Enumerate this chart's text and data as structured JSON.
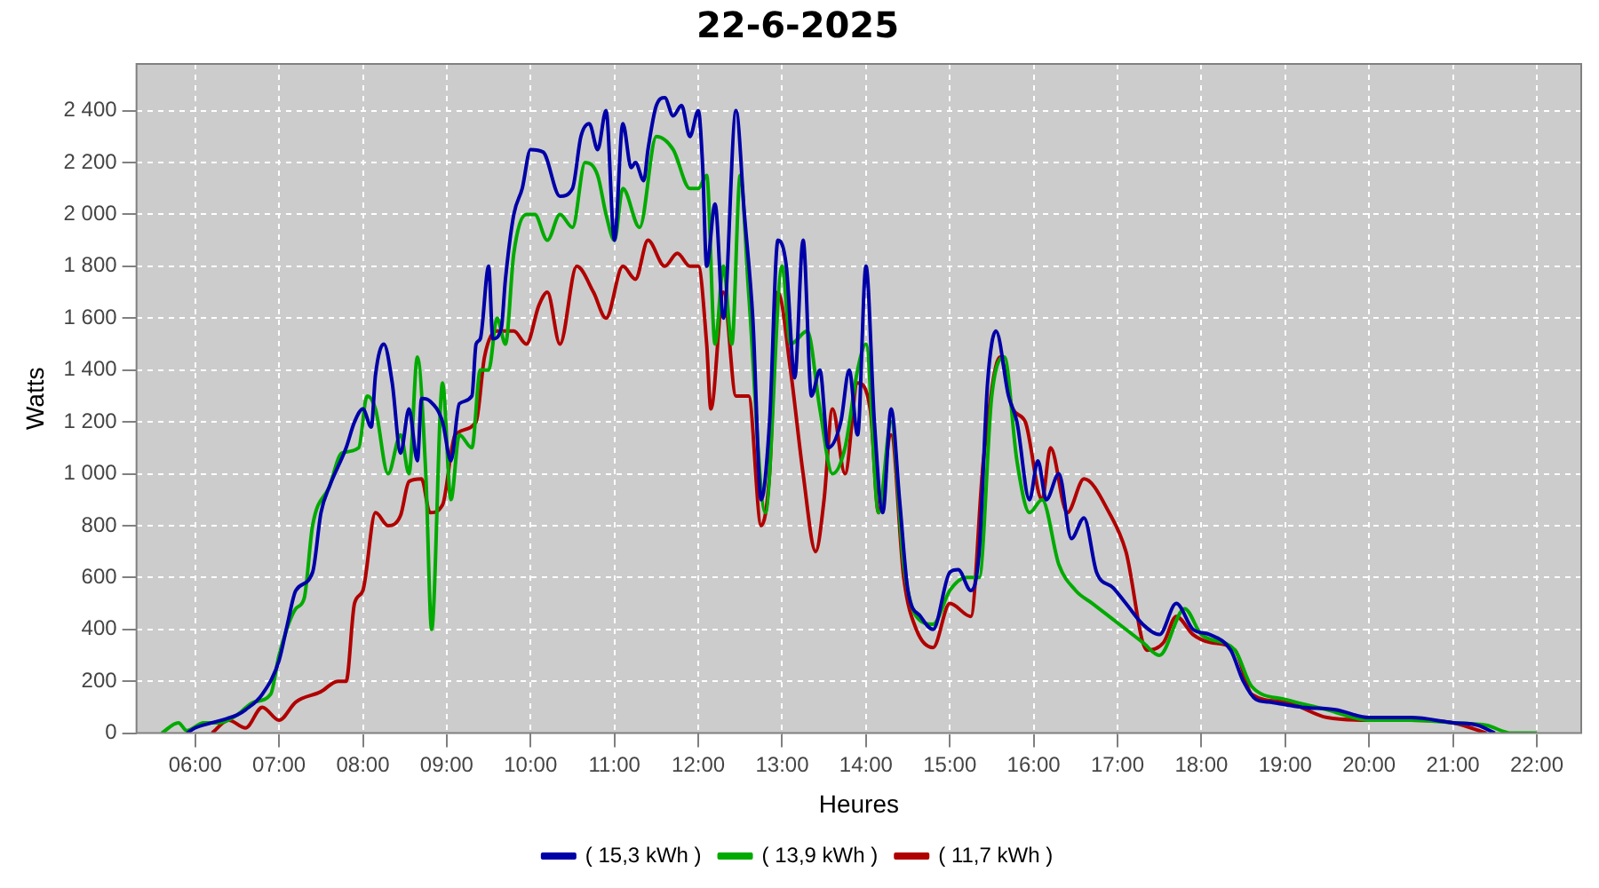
{
  "chart_data": {
    "type": "line",
    "title": "22-6-2025",
    "xlabel": "Heures",
    "ylabel": "Watts",
    "grid": true,
    "legend": "bottom",
    "marker": "none",
    "line_style": "solid",
    "xlim": [
      5.3,
      22.53
    ],
    "ylim": [
      0,
      2580
    ],
    "xticks": [
      {
        "value": 6,
        "label": "06:00"
      },
      {
        "value": 7,
        "label": "07:00"
      },
      {
        "value": 8,
        "label": "08:00"
      },
      {
        "value": 9,
        "label": "09:00"
      },
      {
        "value": 10,
        "label": "10:00"
      },
      {
        "value": 11,
        "label": "11:00"
      },
      {
        "value": 12,
        "label": "12:00"
      },
      {
        "value": 13,
        "label": "13:00"
      },
      {
        "value": 14,
        "label": "14:00"
      },
      {
        "value": 15,
        "label": "15:00"
      },
      {
        "value": 16,
        "label": "16:00"
      },
      {
        "value": 17,
        "label": "17:00"
      },
      {
        "value": 18,
        "label": "18:00"
      },
      {
        "value": 19,
        "label": "19:00"
      },
      {
        "value": 20,
        "label": "20:00"
      },
      {
        "value": 21,
        "label": "21:00"
      },
      {
        "value": 22,
        "label": "22:00"
      }
    ],
    "yticks": [
      0,
      200,
      400,
      600,
      800,
      {
        "value": 1000,
        "label": "1 000"
      },
      {
        "value": 1200,
        "label": "1 200"
      },
      {
        "value": 1400,
        "label": "1 400"
      },
      {
        "value": 1600,
        "label": "1 600"
      },
      {
        "value": 1800,
        "label": "1 800"
      },
      {
        "value": 2000,
        "label": "2 000"
      },
      {
        "value": 2200,
        "label": "2 200"
      },
      {
        "value": 2400,
        "label": "2 400"
      }
    ],
    "series": [
      {
        "name": "( 15,3 kWh )",
        "color": "#0000a8",
        "x": [
          5.9,
          6.0,
          6.2,
          6.5,
          6.6,
          6.8,
          7.0,
          7.1,
          7.2,
          7.4,
          7.5,
          7.6,
          7.8,
          7.9,
          8.0,
          8.1,
          8.15,
          8.25,
          8.35,
          8.45,
          8.55,
          8.65,
          8.7,
          8.8,
          8.95,
          9.05,
          9.15,
          9.3,
          9.35,
          9.4,
          9.5,
          9.55,
          9.65,
          9.7,
          9.8,
          9.9,
          10.0,
          10.15,
          10.35,
          10.5,
          10.6,
          10.7,
          10.8,
          10.9,
          11.0,
          11.1,
          11.2,
          11.25,
          11.35,
          11.4,
          11.5,
          11.6,
          11.7,
          11.8,
          11.9,
          12.0,
          12.05,
          12.1,
          12.2,
          12.3,
          12.45,
          12.55,
          12.65,
          12.75,
          12.85,
          12.95,
          13.05,
          13.15,
          13.25,
          13.35,
          13.45,
          13.55,
          13.7,
          13.8,
          13.9,
          14.0,
          14.1,
          14.2,
          14.3,
          14.4,
          14.5,
          14.65,
          14.8,
          15.0,
          15.1,
          15.25,
          15.35,
          15.45,
          15.55,
          15.7,
          15.8,
          15.95,
          16.05,
          16.15,
          16.3,
          16.45,
          16.6,
          16.75,
          16.95,
          17.1,
          17.3,
          17.5,
          17.7,
          17.9,
          18.1,
          18.35,
          18.5,
          18.65,
          18.8,
          19.0,
          19.2,
          19.6,
          20.0,
          20.5,
          21.0,
          21.3,
          21.5
        ],
        "values": [
          0,
          20,
          40,
          70,
          90,
          150,
          280,
          420,
          550,
          620,
          850,
          950,
          1100,
          1200,
          1250,
          1180,
          1380,
          1500,
          1350,
          1080,
          1250,
          1050,
          1290,
          1280,
          1200,
          1050,
          1270,
          1300,
          1500,
          1520,
          1800,
          1520,
          1560,
          1750,
          2000,
          2100,
          2250,
          2240,
          2070,
          2100,
          2300,
          2350,
          2250,
          2400,
          1900,
          2350,
          2180,
          2200,
          2130,
          2250,
          2420,
          2450,
          2380,
          2420,
          2300,
          2400,
          2200,
          1800,
          2040,
          1600,
          2400,
          2000,
          1600,
          900,
          1200,
          1900,
          1800,
          1370,
          1900,
          1300,
          1400,
          1100,
          1200,
          1400,
          1150,
          1800,
          1200,
          850,
          1250,
          900,
          550,
          450,
          400,
          620,
          630,
          550,
          700,
          1350,
          1550,
          1300,
          1200,
          900,
          1050,
          900,
          1000,
          750,
          830,
          620,
          560,
          500,
          420,
          380,
          500,
          400,
          380,
          320,
          200,
          130,
          120,
          110,
          100,
          90,
          60,
          60,
          40,
          30,
          0
        ]
      },
      {
        "name": "( 13,9 kWh )",
        "color": "#00aa00",
        "x": [
          5.6,
          5.8,
          5.9,
          6.1,
          6.3,
          6.5,
          6.7,
          6.9,
          7.0,
          7.2,
          7.3,
          7.4,
          7.6,
          7.75,
          7.95,
          8.05,
          8.15,
          8.3,
          8.45,
          8.55,
          8.65,
          8.75,
          8.82,
          8.95,
          9.05,
          9.15,
          9.3,
          9.4,
          9.5,
          9.6,
          9.7,
          9.8,
          9.95,
          10.05,
          10.2,
          10.35,
          10.5,
          10.65,
          10.8,
          10.9,
          11.0,
          11.1,
          11.3,
          11.5,
          11.7,
          11.9,
          12.0,
          12.1,
          12.2,
          12.3,
          12.4,
          12.5,
          12.6,
          12.8,
          13.0,
          13.1,
          13.3,
          13.45,
          13.6,
          13.75,
          13.9,
          14.0,
          14.15,
          14.3,
          14.45,
          14.6,
          14.8,
          15.0,
          15.2,
          15.35,
          15.5,
          15.65,
          15.8,
          15.95,
          16.1,
          16.3,
          16.5,
          16.7,
          16.9,
          17.1,
          17.3,
          17.5,
          17.8,
          18.0,
          18.4,
          18.6,
          19.0,
          19.5,
          20.0,
          20.5,
          21.0,
          21.4,
          21.7,
          22.0
        ],
        "values": [
          0,
          40,
          10,
          40,
          40,
          70,
          120,
          150,
          300,
          480,
          520,
          800,
          950,
          1080,
          1100,
          1300,
          1250,
          1000,
          1150,
          1000,
          1450,
          1000,
          400,
          1350,
          900,
          1150,
          1100,
          1400,
          1400,
          1600,
          1500,
          1850,
          2000,
          2000,
          1900,
          2000,
          1950,
          2200,
          2150,
          2000,
          1900,
          2100,
          1950,
          2300,
          2250,
          2100,
          2100,
          2150,
          1500,
          1800,
          1500,
          2150,
          1700,
          850,
          1800,
          1500,
          1550,
          1250,
          1000,
          1100,
          1400,
          1500,
          850,
          1200,
          650,
          450,
          420,
          550,
          600,
          600,
          1300,
          1450,
          1050,
          850,
          900,
          650,
          550,
          500,
          450,
          400,
          350,
          300,
          480,
          380,
          320,
          180,
          130,
          90,
          50,
          50,
          40,
          30,
          0,
          0
        ]
      },
      {
        "name": "( 11,7 kWh )",
        "color": "#b00000",
        "x": [
          6.2,
          6.4,
          6.6,
          6.8,
          7.0,
          7.2,
          7.5,
          7.7,
          7.8,
          7.9,
          8.0,
          8.15,
          8.3,
          8.45,
          8.55,
          8.7,
          8.8,
          8.95,
          9.1,
          9.35,
          9.45,
          9.6,
          9.8,
          9.95,
          10.1,
          10.2,
          10.35,
          10.55,
          10.75,
          10.9,
          11.1,
          11.25,
          11.4,
          11.6,
          11.75,
          11.9,
          12.0,
          12.1,
          12.15,
          12.3,
          12.45,
          12.6,
          12.75,
          12.85,
          12.95,
          13.1,
          13.25,
          13.4,
          13.5,
          13.6,
          13.75,
          13.9,
          14.05,
          14.15,
          14.3,
          14.45,
          14.6,
          14.8,
          15.0,
          15.25,
          15.4,
          15.6,
          15.75,
          15.9,
          16.1,
          16.2,
          16.4,
          16.6,
          16.9,
          17.1,
          17.35,
          17.55,
          17.7,
          17.9,
          18.1,
          18.4,
          18.6,
          19.0,
          19.5,
          20.0,
          20.5,
          21.0,
          21.4
        ],
        "values": [
          0,
          50,
          20,
          100,
          50,
          120,
          160,
          200,
          200,
          500,
          550,
          850,
          800,
          840,
          970,
          980,
          850,
          880,
          1150,
          1200,
          1450,
          1550,
          1550,
          1500,
          1650,
          1700,
          1500,
          1800,
          1700,
          1600,
          1800,
          1750,
          1900,
          1800,
          1850,
          1800,
          1800,
          1500,
          1250,
          1700,
          1300,
          1300,
          800,
          1000,
          1700,
          1400,
          1000,
          700,
          900,
          1250,
          1000,
          1350,
          1250,
          850,
          1150,
          600,
          400,
          330,
          500,
          450,
          1050,
          1450,
          1250,
          1200,
          900,
          1100,
          850,
          980,
          850,
          700,
          320,
          350,
          450,
          380,
          350,
          320,
          150,
          120,
          60,
          50,
          50,
          40,
          0
        ]
      }
    ]
  }
}
